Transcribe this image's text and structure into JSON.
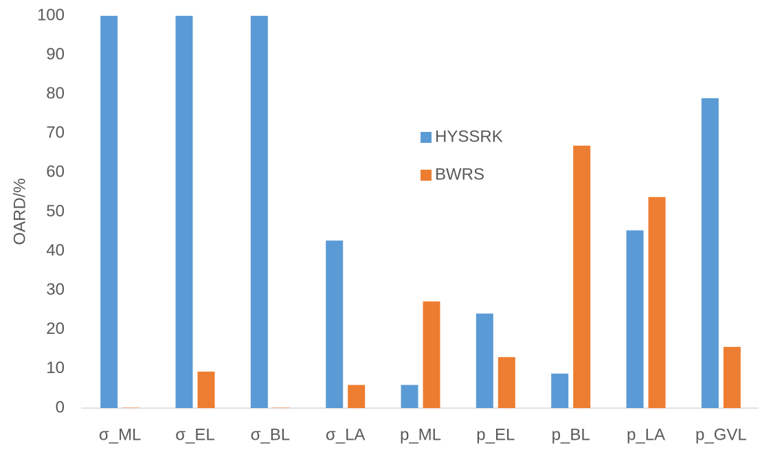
{
  "chart_data": {
    "type": "bar",
    "y_label": "OARD/%",
    "categories": [
      "σ_ML",
      "σ_EL",
      "σ_BL",
      "σ_LA",
      "p_ML",
      "p_EL",
      "p_BL",
      "p_LA",
      "p_GVL"
    ],
    "series": [
      {
        "name": "HYSSRK",
        "color": "#5b9bd5",
        "values": [
          100,
          100,
          100,
          42.7,
          5.9,
          24.1,
          8.8,
          45.3,
          79.0
        ]
      },
      {
        "name": "BWRS",
        "color": "#ed7d31",
        "values": [
          0.1,
          9.3,
          0.1,
          5.9,
          27.2,
          13.0,
          66.9,
          53.8,
          15.6
        ]
      }
    ],
    "ylim": [
      0,
      100
    ],
    "yticks": [
      0,
      10,
      20,
      30,
      40,
      50,
      60,
      70,
      80,
      90,
      100
    ],
    "grid": false,
    "legend": "center"
  }
}
